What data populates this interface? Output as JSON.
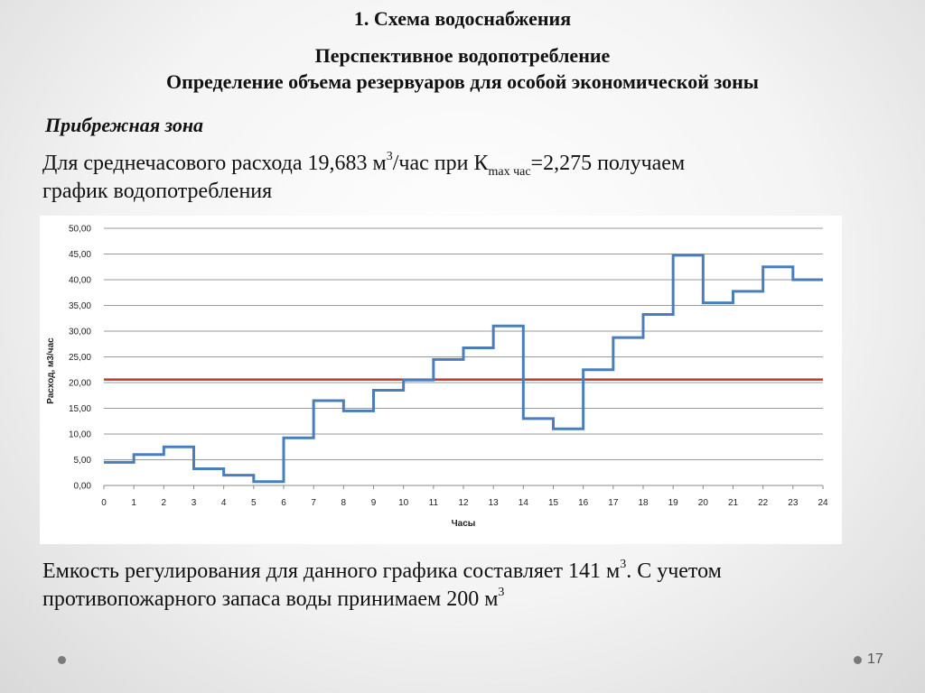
{
  "slide": {
    "title_main": "1. Схема водоснабжения",
    "title_sub1": "Перспективное водопотребление",
    "title_sub2": "Определение объема резервуаров для особой экономической зоны",
    "subheading": "Прибрежная зона",
    "para1": {
      "part1": "Для среднечасового расхода 19,683 м",
      "sup1": "3",
      "part2": "/час при К",
      "sub1": "max час",
      "part3": "=2,275 получаем",
      "line2": "график водопотребления"
    },
    "para2": {
      "part1": "Емкость регулирования для данного графика составляет 141 м",
      "sup1": "3",
      "part2": ". С учетом",
      "line2": "противопожарного запаса воды принимаем 200 м",
      "sup2": "3"
    },
    "page_number": "17"
  },
  "chart_data": {
    "type": "line",
    "step": true,
    "xlabel": "Часы",
    "ylabel": "Расход, м3/час",
    "xlim": [
      0,
      24
    ],
    "ylim": [
      0,
      50
    ],
    "x_ticks": [
      "0",
      "1",
      "2",
      "3",
      "4",
      "5",
      "6",
      "7",
      "8",
      "9",
      "10",
      "11",
      "12",
      "13",
      "14",
      "15",
      "16",
      "17",
      "18",
      "19",
      "20",
      "21",
      "22",
      "23",
      "24"
    ],
    "y_ticks": [
      "0,00",
      "5,00",
      "10,00",
      "15,00",
      "20,00",
      "25,00",
      "30,00",
      "35,00",
      "40,00",
      "45,00",
      "50,00"
    ],
    "grid": true,
    "series": [
      {
        "color": "#4a7ebb",
        "hours": [
          0,
          1,
          2,
          3,
          4,
          5,
          6,
          7,
          8,
          9,
          10,
          11,
          12,
          13,
          14,
          15,
          16,
          17,
          18,
          19,
          20,
          21,
          22,
          23
        ],
        "values": [
          4.5,
          6.0,
          7.5,
          3.25,
          2.0,
          0.75,
          9.25,
          16.5,
          14.5,
          18.5,
          20.5,
          24.5,
          26.75,
          31.0,
          13.0,
          11.0,
          22.5,
          28.75,
          33.25,
          44.75,
          35.5,
          37.75,
          42.5,
          40.0
        ]
      },
      {
        "color": "#c0392b",
        "values": [
          20.6,
          20.6
        ],
        "x": [
          0,
          24
        ]
      }
    ]
  }
}
